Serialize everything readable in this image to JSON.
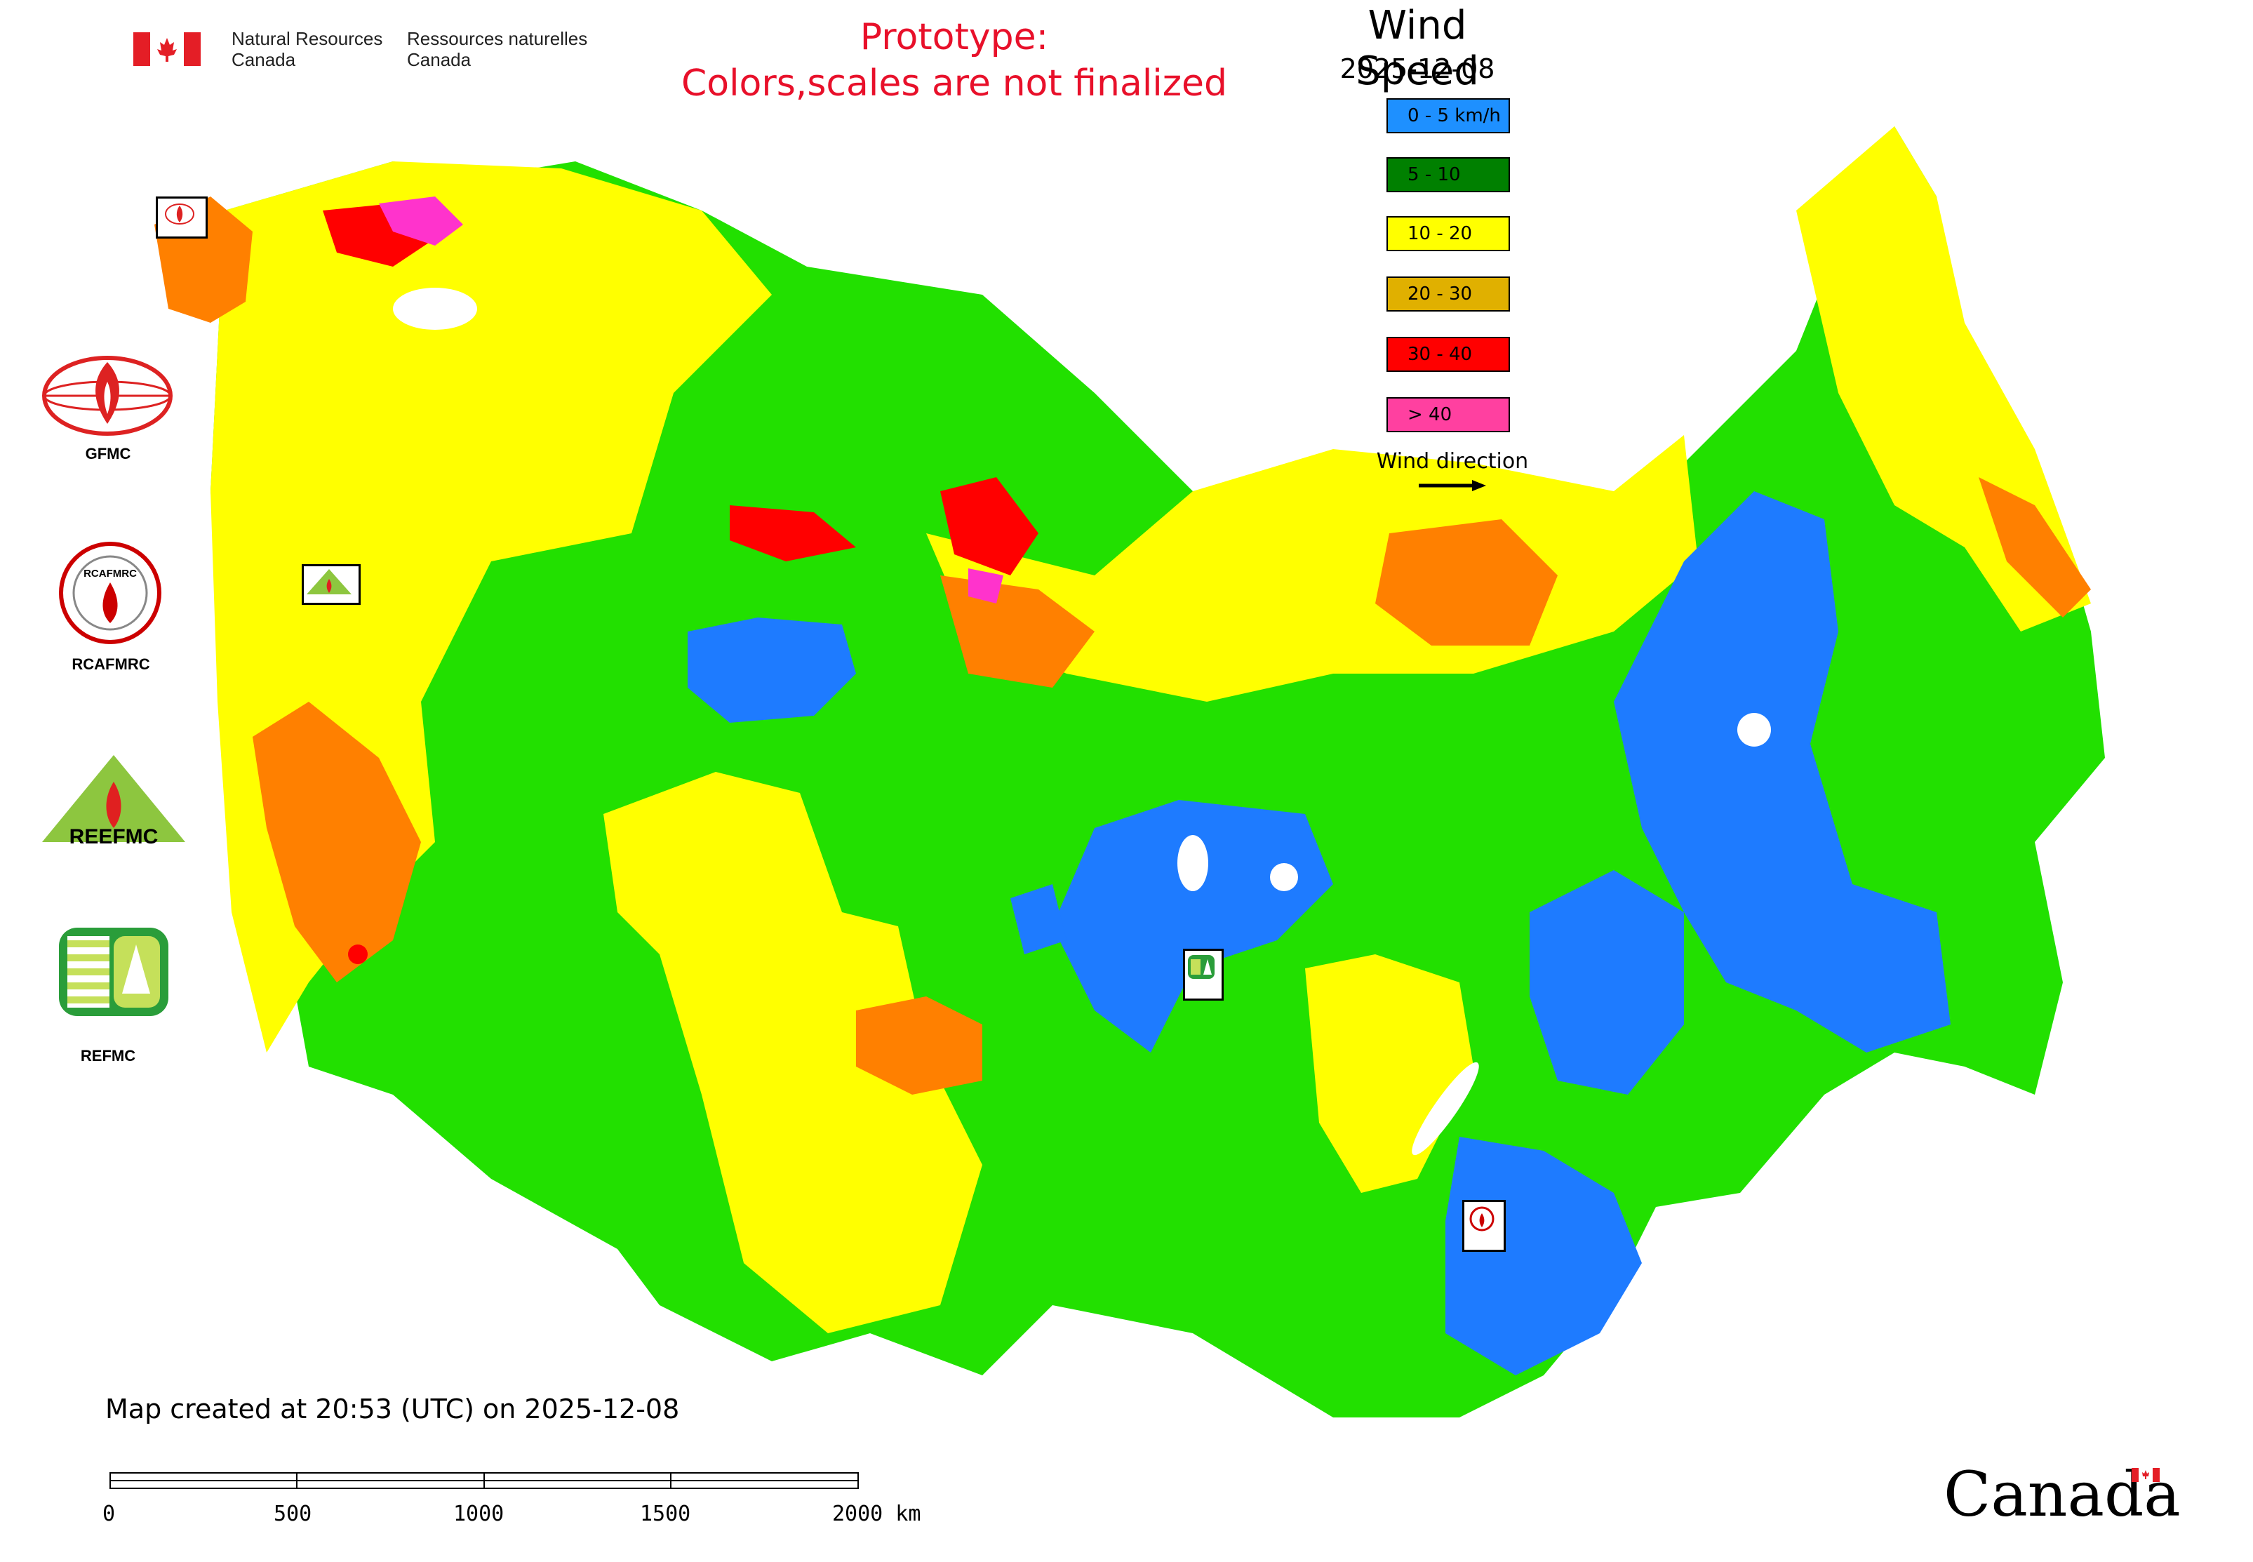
{
  "header": {
    "agency_en_line1": "Natural Resources",
    "agency_en_line2": "Canada",
    "agency_fr_line1": "Ressources naturelles",
    "agency_fr_line2": "Canada"
  },
  "notice": {
    "line1": "Prototype:",
    "line2": "Colors,scales are not finalized",
    "color": "#e8102a"
  },
  "legend": {
    "title": "Wind Speed",
    "date": "2025-12-08",
    "classes": [
      {
        "label": "0 - 5 km/h",
        "color": "#1e90ff"
      },
      {
        "label": "5 - 10",
        "color": "#008000"
      },
      {
        "label": "10 - 20",
        "color": "#ffff00"
      },
      {
        "label": "20 - 30",
        "color": "#e0b000"
      },
      {
        "label": "30 - 40",
        "color": "#ff0000"
      },
      {
        "label": "> 40",
        "color": "#ff40a0"
      }
    ],
    "wind_direction_label": "Wind direction"
  },
  "partners": {
    "gfmc": "GFMC",
    "rcafmrc": "RCAFMRC",
    "reefmc": "REFMC",
    "reefmc_logo_text": "REEFMC",
    "rcafmrc_logo_text": "RCAFMRC"
  },
  "map_colors": {
    "low": "#1e7bff",
    "light_green": "#22e000",
    "mid": "#ffff00",
    "high": "#ff8000",
    "very_high": "#ff0000",
    "extreme": "#ff33cc"
  },
  "footer": {
    "created": "Map created at 20:53 (UTC) on 2025-12-08",
    "scale_ticks": [
      "0",
      "500",
      "1000",
      "1500",
      "2000 km"
    ],
    "wordmark": "Canada"
  }
}
